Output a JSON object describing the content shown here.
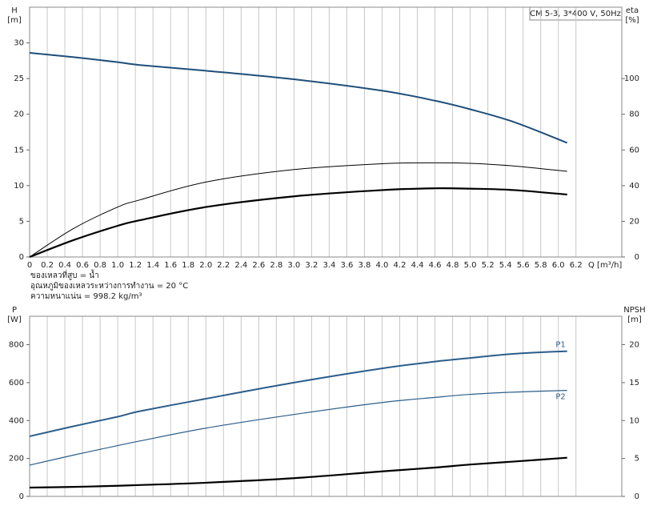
{
  "chart_data": [
    {
      "type": "line",
      "y_label": "H",
      "y_unit": "[m]",
      "y2_label": "eta",
      "y2_unit": "[%]",
      "x_label": "Q [m³/h]",
      "legend_box": "CM 5-3, 3*400 V, 50Hz",
      "notes": [
        "ของเหลวที่สูบ = น้ำ",
        "อุณหภูมิของเหลวระหว่างการทำงาน = 20 °C",
        "ความหนาแน่น = 998.2 kg/m³"
      ],
      "x": [
        0,
        0.5,
        1,
        1.25,
        2,
        3,
        4,
        4.6,
        5,
        5.5,
        6.1
      ],
      "xlim": [
        0,
        6.72
      ],
      "xticks": [
        0,
        0.2,
        0.4,
        0.6,
        0.8,
        {
          "value": 1,
          "label": "1.0"
        },
        1.2,
        1.4,
        1.6,
        1.8,
        {
          "value": 2,
          "label": "2.0"
        },
        2.2,
        2.4,
        2.6,
        2.8,
        {
          "value": 3,
          "label": "3.0"
        },
        3.2,
        3.4,
        3.6,
        3.8,
        {
          "value": 4,
          "label": "4.0"
        },
        4.2,
        4.4,
        4.6,
        4.8,
        {
          "value": 5,
          "label": "5.0"
        },
        5.2,
        5.4,
        5.6,
        5.8,
        {
          "value": 6,
          "label": "6.0"
        },
        6.2
      ],
      "ylim": [
        0,
        35
      ],
      "yticks": [
        0,
        5,
        10,
        15,
        20,
        25,
        30
      ],
      "y2lim": [
        0,
        140
      ],
      "y2ticks": [
        0,
        20,
        40,
        60,
        80,
        100
      ],
      "series": [
        {
          "color": "#1f4e79",
          "width": 2,
          "values": [
            28.6,
            28.0,
            27.3,
            26.9,
            26.1,
            24.9,
            23.3,
            21.9,
            20.7,
            18.9,
            16.0
          ]
        },
        {
          "color": "#000000",
          "width": 1,
          "axis": "y2",
          "values": [
            0,
            16,
            28,
            32,
            42,
            49,
            52.3,
            52.8,
            52.5,
            51,
            48
          ]
        },
        {
          "color": "#000000",
          "width": 2.2,
          "axis": "y2",
          "values": [
            0,
            9.5,
            17.5,
            20.6,
            28,
            34,
            37.5,
            38.5,
            38.3,
            37.5,
            35
          ]
        }
      ]
    },
    {
      "type": "line",
      "y_label": "P",
      "y_unit": "[W]",
      "y2_label": "NPSH",
      "y2_unit": "[m]",
      "x": [
        0,
        0.5,
        1,
        1.25,
        2,
        3,
        4,
        4.6,
        5,
        5.5,
        6.1
      ],
      "xlim": [
        0,
        6.72
      ],
      "xticks": [
        0,
        0.2,
        0.4,
        0.6,
        0.8,
        1,
        1.2,
        1.4,
        1.6,
        1.8,
        2,
        2.2,
        2.4,
        2.6,
        2.8,
        3,
        3.2,
        3.4,
        3.6,
        3.8,
        4,
        4.2,
        4.4,
        4.6,
        4.8,
        5,
        5.2,
        5.4,
        5.6,
        5.8,
        6,
        6.2
      ],
      "ylim": [
        0,
        950
      ],
      "yticks": [
        0,
        200,
        400,
        600,
        800
      ],
      "y2lim": [
        0,
        23.75
      ],
      "y2ticks": [
        0,
        5,
        10,
        15,
        20
      ],
      "series": [
        {
          "name": "P1",
          "color": "#2b5d8a",
          "width": 2,
          "values": [
            317,
            370,
            420,
            449,
            515,
            600,
            675,
            711,
            730,
            752,
            766
          ]
        },
        {
          "name": "P2",
          "color": "#2b5d8a",
          "width": 1.2,
          "values": [
            165,
            218,
            268,
            292,
            360,
            432,
            495,
            522,
            538,
            550,
            559
          ]
        },
        {
          "color": "#000000",
          "width": 2.2,
          "axis": "y2",
          "values": [
            1.16,
            1.25,
            1.4,
            1.5,
            1.8,
            2.4,
            3.3,
            3.8,
            4.2,
            4.6,
            5.1
          ]
        }
      ]
    }
  ]
}
